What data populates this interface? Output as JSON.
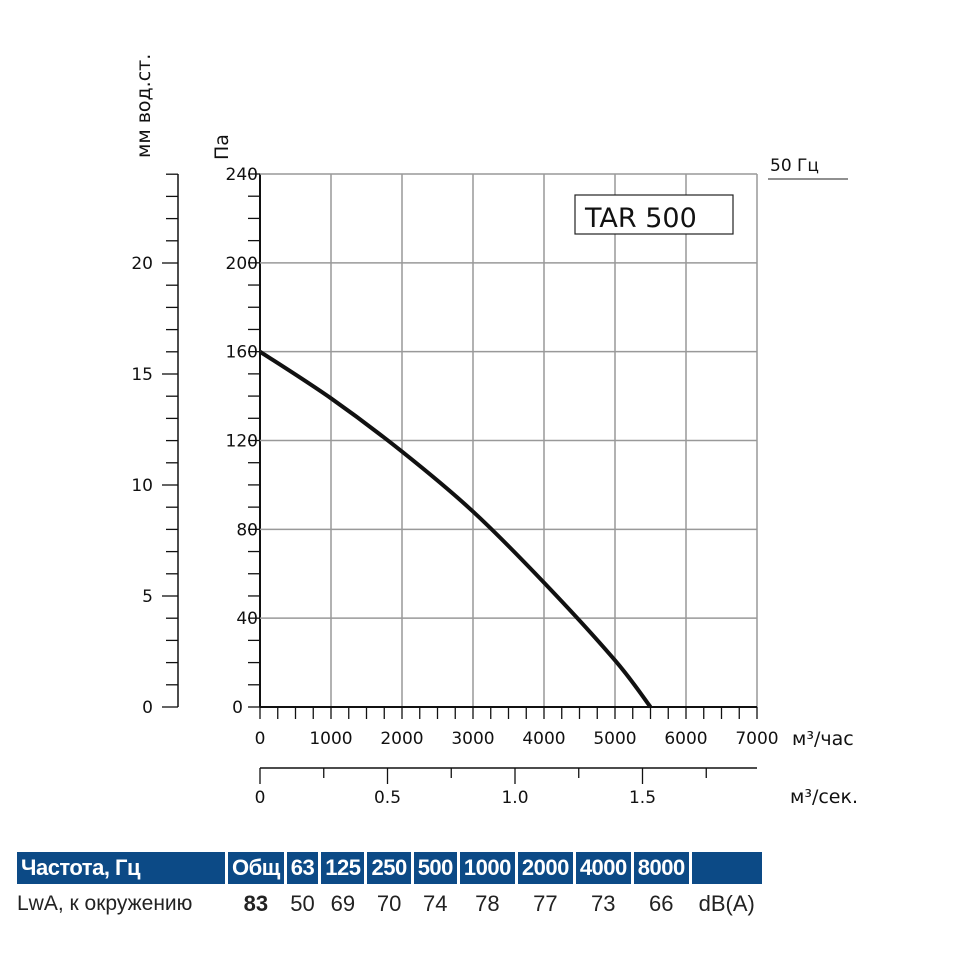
{
  "chart_data": {
    "type": "line",
    "model_label": "TAR 500",
    "frequency_label": "50 Гц",
    "xlabel": "м³/час",
    "xlabel2": "м³/сек.",
    "ylabel": "Па",
    "ylabel2": "мм вод.ст.",
    "xlim": [
      0,
      7000
    ],
    "ylim": [
      0,
      240
    ],
    "x_ticks": [
      "0",
      "1000",
      "2000",
      "3000",
      "4000",
      "5000",
      "6000",
      "7000"
    ],
    "y_ticks": [
      "0",
      "40",
      "80",
      "120",
      "160",
      "200",
      "240"
    ],
    "y2_ticks": [
      "0",
      "5",
      "10",
      "15",
      "20"
    ],
    "x2_ticks": [
      "0",
      "0.5",
      "1.0",
      "1.5"
    ],
    "grid": true,
    "series": [
      {
        "x": [
          0,
          1000,
          2000,
          3000,
          4000,
          5000,
          5500
        ],
        "y": [
          160,
          139,
          115,
          88,
          56,
          21,
          0
        ]
      }
    ]
  },
  "table": {
    "headers": [
      "Частота, Гц",
      "Общ",
      "63",
      "125",
      "250",
      "500",
      "1000",
      "2000",
      "4000",
      "8000",
      ""
    ],
    "row": [
      "LwA, к окружению",
      "83",
      "50",
      "69",
      "70",
      "74",
      "78",
      "77",
      "73",
      "66",
      "dB(A)"
    ]
  }
}
